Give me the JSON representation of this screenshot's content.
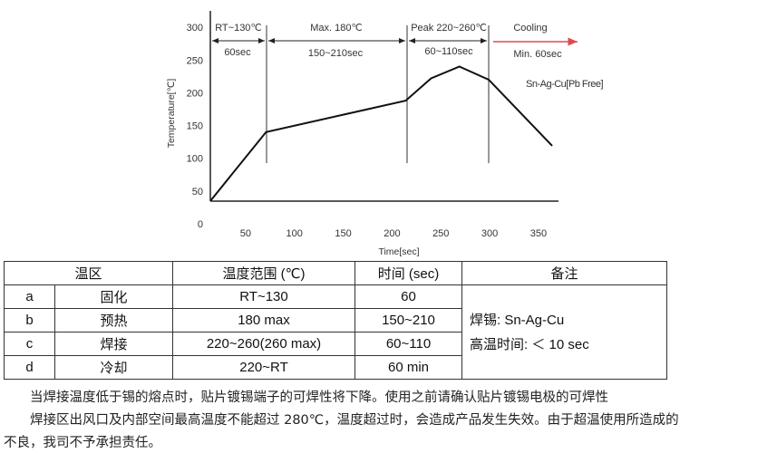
{
  "chart_data": {
    "type": "line",
    "xlabel": "Time[sec]",
    "ylabel": "Temperature[℃]",
    "xticks": [
      "50",
      "100",
      "150",
      "200",
      "250",
      "300",
      "350"
    ],
    "yticks": [
      "0",
      "50",
      "100",
      "150",
      "200",
      "250",
      "300"
    ],
    "xlim": [
      0,
      380
    ],
    "ylim": [
      0,
      300
    ],
    "grid": false,
    "series": [
      {
        "name": "Sn-Ag-Cu[Pb Free]",
        "x": [
          14,
          71,
          214,
          240,
          269,
          299,
          364
        ],
        "y": [
          35,
          140,
          188,
          222,
          240,
          220,
          119
        ]
      }
    ],
    "zones": [
      {
        "title": "RT~130℃",
        "duration": "60sec"
      },
      {
        "title": "Max. 180℃",
        "duration": "150~210sec"
      },
      {
        "title": "Peak 220~260℃",
        "duration": "60~110sec"
      },
      {
        "title": "Cooling",
        "duration": "Min. 60sec"
      }
    ],
    "series_label": "Sn-Ag-Cu[Pb Free]",
    "line_color": "#111111",
    "cooling_arrow_color": "#e0484f"
  },
  "table": {
    "headers": [
      "温区",
      "温度范围 (℃)",
      "时间 (sec)",
      "备注"
    ],
    "rows": [
      {
        "id": "a",
        "zone": "固化",
        "range": "RT~130",
        "time": "60"
      },
      {
        "id": "b",
        "zone": "预热",
        "range": "180 max",
        "time": "150~210"
      },
      {
        "id": "c",
        "zone": "焊接",
        "range": "220~260(260 max)",
        "time": "60~110"
      },
      {
        "id": "d",
        "zone": "冷却",
        "range": "220~RT",
        "time": "60 min"
      }
    ],
    "note_line1": "焊锡: Sn-Ag-Cu",
    "note_line2": "高温时间: ＜ 10 sec"
  },
  "paragraphs": [
    "　　当焊接温度低于锡的熔点时，贴片镀锡端子的可焊性将下降。使用之前请确认贴片镀锡电极的可焊性",
    "　　焊接区出风口及内部空间最高温度不能超过 280℃，温度超过时，会造成产品发生失效。由于超温使用所造成的",
    "不良，我司不予承担责任。"
  ]
}
